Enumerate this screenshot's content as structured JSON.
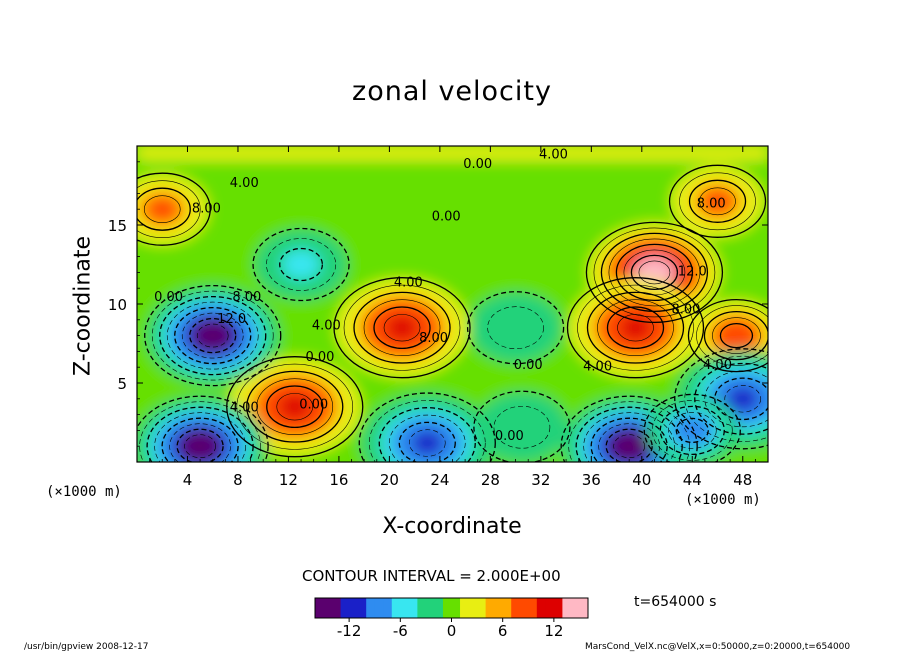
{
  "chart_data": {
    "type": "heatmap",
    "title": "zonal velocity",
    "xlabel": "X-coordinate",
    "ylabel": "Z-coordinate",
    "x_unit_left": "(×1000 m)",
    "x_unit_right": "(×1000 m)",
    "xlim": [
      0,
      50
    ],
    "ylim": [
      0,
      20
    ],
    "x_ticks": [
      4,
      8,
      12,
      16,
      20,
      24,
      28,
      32,
      36,
      40,
      44,
      48
    ],
    "y_ticks": [
      5,
      10,
      15
    ],
    "colorbar": {
      "min": -16,
      "max": 16,
      "ticks": [
        -12,
        -6,
        0,
        6,
        12
      ],
      "colors": [
        "#5a006e",
        "#1a20c8",
        "#2f8cf0",
        "#38e6f0",
        "#22d27a",
        "#66e000",
        "#e8ee12",
        "#ffaa00",
        "#ff4a00",
        "#dd0000",
        "#ffb8c4"
      ]
    },
    "contour_interval": "CONTOUR INTERVAL = 2.000E+00",
    "contour_labels": [
      {
        "text": "0.00",
        "x": 27,
        "z": 18.6
      },
      {
        "text": "4.00",
        "x": 33,
        "z": 19.2
      },
      {
        "text": "4.00",
        "x": 8.5,
        "z": 17.4
      },
      {
        "text": "8.00",
        "x": 5.5,
        "z": 15.8
      },
      {
        "text": "0.00",
        "x": 24.5,
        "z": 15.3
      },
      {
        "text": "8.00",
        "x": 45.5,
        "z": 16.1
      },
      {
        "text": "12.0",
        "x": 44,
        "z": 11.8
      },
      {
        "text": "0.00",
        "x": 2.5,
        "z": 10.2
      },
      {
        "text": "8.00",
        "x": 8.7,
        "z": 10.2
      },
      {
        "text": "12.0",
        "x": 7.5,
        "z": 8.8
      },
      {
        "text": "4.00",
        "x": 15,
        "z": 8.4
      },
      {
        "text": "4.00",
        "x": 21.5,
        "z": 11.1
      },
      {
        "text": "8.00",
        "x": 23.5,
        "z": 7.6
      },
      {
        "text": "0.00",
        "x": 14.5,
        "z": 6.4
      },
      {
        "text": "0.00",
        "x": 31,
        "z": 5.9
      },
      {
        "text": "4.00",
        "x": 36.5,
        "z": 5.8
      },
      {
        "text": "4.00",
        "x": 46,
        "z": 5.9
      },
      {
        "text": "8.00",
        "x": 43.5,
        "z": 9.4
      },
      {
        "text": "4.00",
        "x": 8.5,
        "z": 3.2
      },
      {
        "text": "0.00",
        "x": 14,
        "z": 3.4
      },
      {
        "text": "0.00",
        "x": 29.5,
        "z": 1.4
      }
    ],
    "features": [
      {
        "kind": "jet",
        "x": 41,
        "z": 12,
        "value": 16
      },
      {
        "kind": "jet",
        "x": 21,
        "z": 8.5,
        "value": 12
      },
      {
        "kind": "jet",
        "x": 39.5,
        "z": 8.5,
        "value": 12
      },
      {
        "kind": "jet",
        "x": 12.5,
        "z": 3.5,
        "value": 12
      },
      {
        "kind": "jet",
        "x": 46,
        "z": 16.5,
        "value": 8
      },
      {
        "kind": "jet",
        "x": 2,
        "z": 16,
        "value": 8
      },
      {
        "kind": "jet",
        "x": 47.5,
        "z": 8,
        "value": 10
      },
      {
        "kind": "trough",
        "x": 6,
        "z": 8,
        "value": -16
      },
      {
        "kind": "trough",
        "x": 13,
        "z": 12.5,
        "value": -6
      },
      {
        "kind": "trough",
        "x": 30,
        "z": 8.5,
        "value": -3
      },
      {
        "kind": "trough",
        "x": 5,
        "z": 1,
        "value": -16
      },
      {
        "kind": "trough",
        "x": 23,
        "z": 1.2,
        "value": -12
      },
      {
        "kind": "trough",
        "x": 39,
        "z": 1,
        "value": -16
      },
      {
        "kind": "trough",
        "x": 48,
        "z": 4,
        "value": -12
      },
      {
        "kind": "trough",
        "x": 44,
        "z": 2,
        "value": -10
      },
      {
        "kind": "trough",
        "x": 30.5,
        "z": 2.2,
        "value": -4
      }
    ]
  },
  "time_label": "t=654000 s",
  "footer_left": "/usr/bin/gpview   2008-12-17",
  "footer_right": "MarsCond_VelX.nc@VelX,x=0:50000,z=0:20000,t=654000"
}
